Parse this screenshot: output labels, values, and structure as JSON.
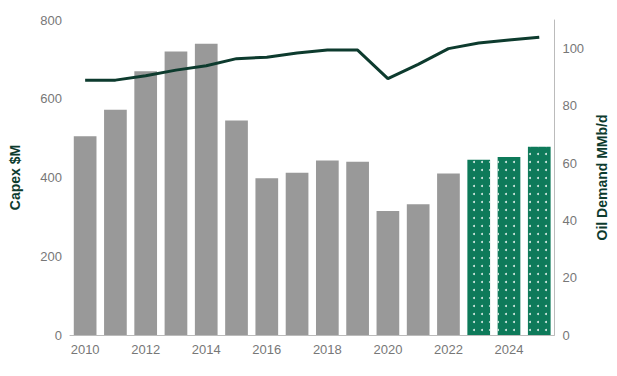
{
  "chart_data": {
    "type": "bar",
    "categories": [
      "2010",
      null,
      "2012",
      null,
      "2014",
      null,
      "2016",
      null,
      "2018",
      null,
      "2020",
      null,
      "2022",
      null,
      "2024",
      null
    ],
    "ylabel": "Capex $M",
    "y2label": "Oil Demand MMb/d",
    "ylim": [
      0,
      800
    ],
    "yticks": [
      0,
      200,
      400,
      600,
      800
    ],
    "y2lim": [
      0,
      110
    ],
    "y2ticks": [
      0,
      20,
      40,
      60,
      80,
      100
    ],
    "grid": false,
    "series": [
      {
        "name": "Capex",
        "type": "bar",
        "color": "#999999",
        "colors": [
          "#999999",
          "#999999",
          "#999999",
          "#999999",
          "#999999",
          "#999999",
          "#999999",
          "#999999",
          "#999999",
          "#999999",
          "#999999",
          "#999999",
          "#999999",
          "#0e7a5a",
          "#0e7a5a",
          "#0e7a5a"
        ],
        "values": [
          505,
          572,
          670,
          720,
          740,
          545,
          398,
          412,
          443,
          440,
          315,
          332,
          410,
          445,
          452,
          478
        ]
      },
      {
        "name": "Oil Demand",
        "type": "line",
        "axis": "y2",
        "color": "#0d3b2e",
        "values": [
          89,
          89,
          90.5,
          92.5,
          94,
          96.5,
          97,
          98.5,
          99.5,
          99.5,
          89.5,
          94.5,
          100,
          102,
          103,
          104
        ]
      }
    ]
  }
}
